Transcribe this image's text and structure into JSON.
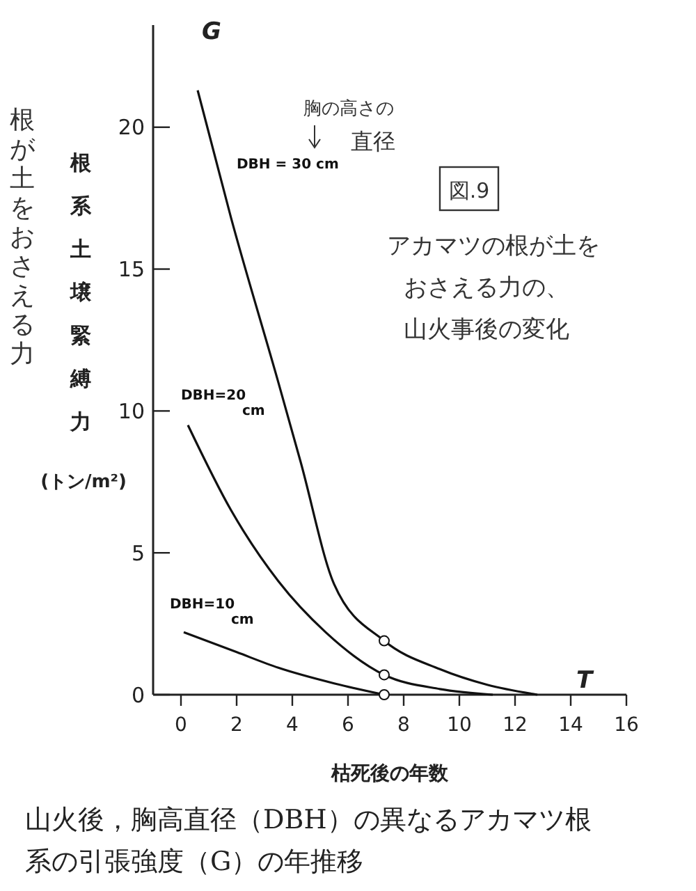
{
  "chart_data": {
    "type": "line",
    "title": "山火後，胸高直径（DBH）の異なるアカマツ根系の引張強度（G）の年推移",
    "xlabel": "枯死後の年数",
    "ylabel": "根系土壌緊縛力 (トン/m²)",
    "annotations": [
      "G",
      "T",
      "胸の高さの直径",
      "図.9",
      "アカマツの根が土をおさえる力の、山火事後の変化",
      "根が土をおさえる力"
    ],
    "xlim": [
      -1,
      16
    ],
    "ylim": [
      0,
      23.6
    ],
    "xticks": [
      0,
      2,
      4,
      6,
      8,
      10,
      12,
      14,
      16
    ],
    "yticks": [
      0,
      5,
      10,
      15,
      20
    ],
    "grid": false,
    "line_style": "solid",
    "series": [
      {
        "name": "DBH = 30 cm",
        "color": "#111111",
        "x": [
          0.6,
          1.8,
          3.5,
          4.3,
          5.5,
          7.3,
          9.3,
          11,
          12.8
        ],
        "values": [
          21.3,
          16.8,
          11,
          8.2,
          3.9,
          1.9,
          0.9,
          0.35,
          0
        ]
      },
      {
        "name": "DBH=20 cm",
        "color": "#111111",
        "x": [
          0.25,
          1.8,
          3.5,
          5.2,
          7.3,
          9.3,
          11.2
        ],
        "values": [
          9.5,
          6.5,
          4,
          2.2,
          0.7,
          0.2,
          0
        ]
      },
      {
        "name": "DBH=10 cm",
        "color": "#111111",
        "x": [
          0.1,
          2,
          3.5,
          5.5,
          7.3
        ],
        "values": [
          2.2,
          1.5,
          0.95,
          0.4,
          0
        ]
      },
      {
        "type": "scatter",
        "marker": "circle",
        "color": "#111111",
        "x": [
          7.3,
          7.3,
          7.3
        ],
        "values": [
          1.9,
          0.7,
          0
        ]
      }
    ]
  }
}
